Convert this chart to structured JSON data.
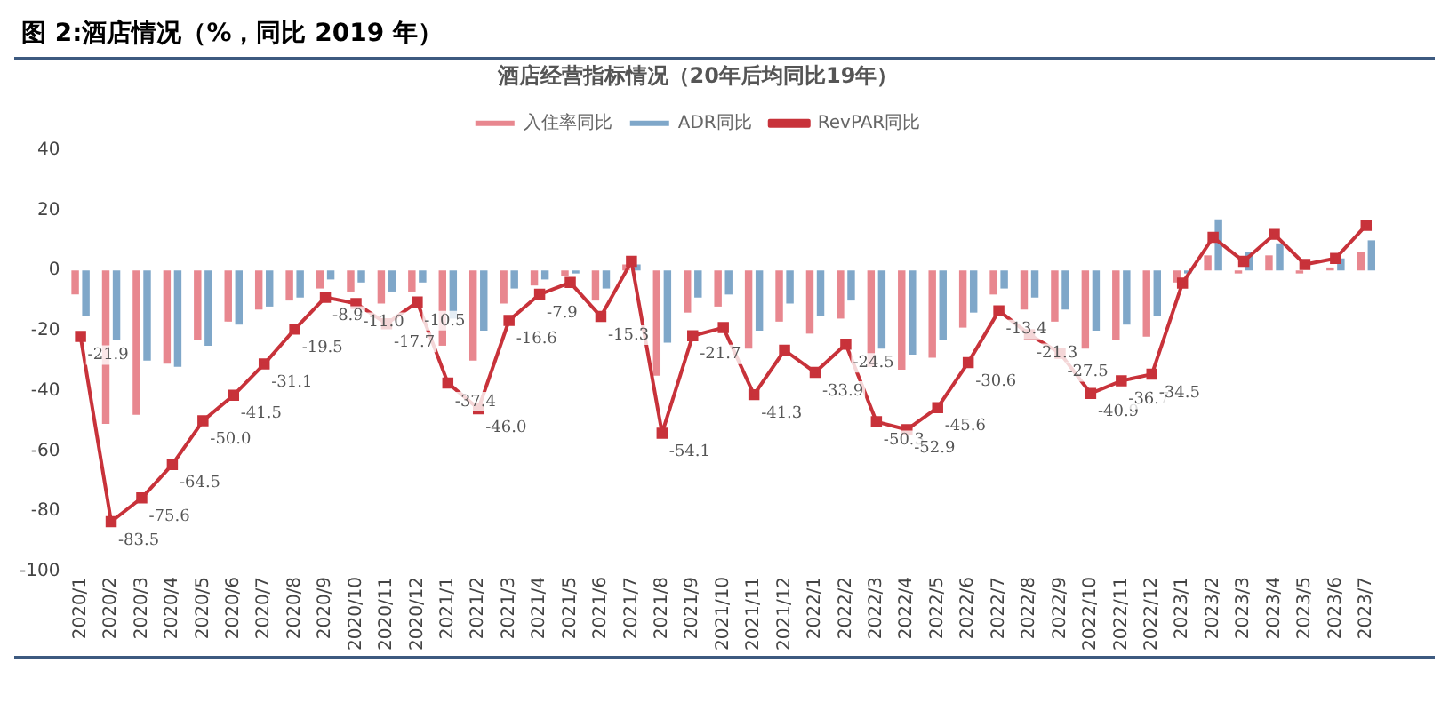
{
  "chart_data": {
    "type": "bar",
    "title": "图 2:酒店情况（%，同比 2019 年）",
    "subtitle": "酒店经营指标情况（20年后均同比19年）",
    "categories": [
      "2020/1",
      "2020/2",
      "2020/3",
      "2020/4",
      "2020/5",
      "2020/6",
      "2020/7",
      "2020/8",
      "2020/9",
      "2020/10",
      "2020/11",
      "2020/12",
      "2021/1",
      "2021/2",
      "2021/3",
      "2021/4",
      "2021/5",
      "2021/6",
      "2021/7",
      "2021/8",
      "2021/9",
      "2021/10",
      "2021/11",
      "2021/12",
      "2022/1",
      "2022/2",
      "2022/3",
      "2022/4",
      "2022/5",
      "2022/6",
      "2022/7",
      "2022/8",
      "2022/9",
      "2022/10",
      "2022/11",
      "2022/12",
      "2023/1",
      "2023/2",
      "2023/3",
      "2023/4",
      "2023/5",
      "2023/6",
      "2023/7"
    ],
    "series": [
      {
        "name": "入住率同比",
        "color": "#e8878f",
        "values": [
          -8,
          -51,
          -48,
          -31,
          -23,
          -17,
          -13,
          -10,
          -6,
          -7,
          -11,
          -7,
          -25,
          -30,
          -11,
          -5,
          -2,
          -10,
          2,
          -35,
          -14,
          -12,
          -26,
          -17,
          -21,
          -16,
          -32,
          -33,
          -29,
          -19,
          -8,
          -13,
          -17,
          -26,
          -23,
          -22,
          -4,
          5,
          -1,
          5,
          -1,
          1,
          6
        ]
      },
      {
        "name": "ADR同比",
        "color": "#7fa7c9",
        "values": [
          -15,
          -23,
          -30,
          -32,
          -25,
          -18,
          -12,
          -9,
          -3,
          -4,
          -7,
          -4,
          -16,
          -20,
          -6,
          -3,
          -1,
          -6,
          2,
          -24,
          -9,
          -8,
          -20,
          -11,
          -15,
          -10,
          -26,
          -28,
          -23,
          -14,
          -6,
          -9,
          -13,
          -20,
          -18,
          -15,
          -1,
          17,
          6,
          9,
          null,
          4,
          10
        ]
      },
      {
        "name": "RevPAR同比",
        "type": "line",
        "color": "#c8323a",
        "marker": "square",
        "values": [
          -21.9,
          -83.5,
          -75.6,
          -64.5,
          -50.0,
          -41.5,
          -31.1,
          -19.5,
          -8.9,
          -11.0,
          -17.7,
          -10.5,
          -37.4,
          -46.0,
          -16.6,
          -7.9,
          -4,
          -15.3,
          3,
          -54.1,
          -21.7,
          -19,
          -41.3,
          -26.5,
          -33.9,
          -24.5,
          -50.3,
          -52.9,
          -45.6,
          -30.6,
          -13.4,
          -21.3,
          -27.5,
          -40.9,
          -36.7,
          -34.5,
          -4.2,
          11,
          3,
          12,
          2,
          4,
          15
        ],
        "value_labels": [
          "-21.9",
          "-83.5",
          "-75.6",
          "-64.5",
          "-50.0",
          "-41.5",
          "-31.1",
          "-19.5",
          "-8.9",
          "-11.0",
          "-17.7",
          "-10.5",
          "-37.4",
          "-46.0",
          "-16.6",
          "-7.9",
          null,
          "-15.3",
          null,
          "-54.1",
          "-21.7",
          null,
          "-41.3",
          null,
          "-33.9",
          "-24.5",
          "-50.3",
          "-52.9",
          "-45.6",
          "-30.6",
          "-13.4",
          "-21.3",
          "-27.5",
          "-40.9",
          "-36.7",
          "-34.5",
          null,
          null,
          null,
          null,
          null,
          null,
          null
        ]
      }
    ],
    "ylim": [
      -100,
      40
    ],
    "yticks": [
      -100,
      -80,
      -60,
      -40,
      -20,
      0,
      20,
      40
    ],
    "grid": false,
    "legend": "top"
  }
}
